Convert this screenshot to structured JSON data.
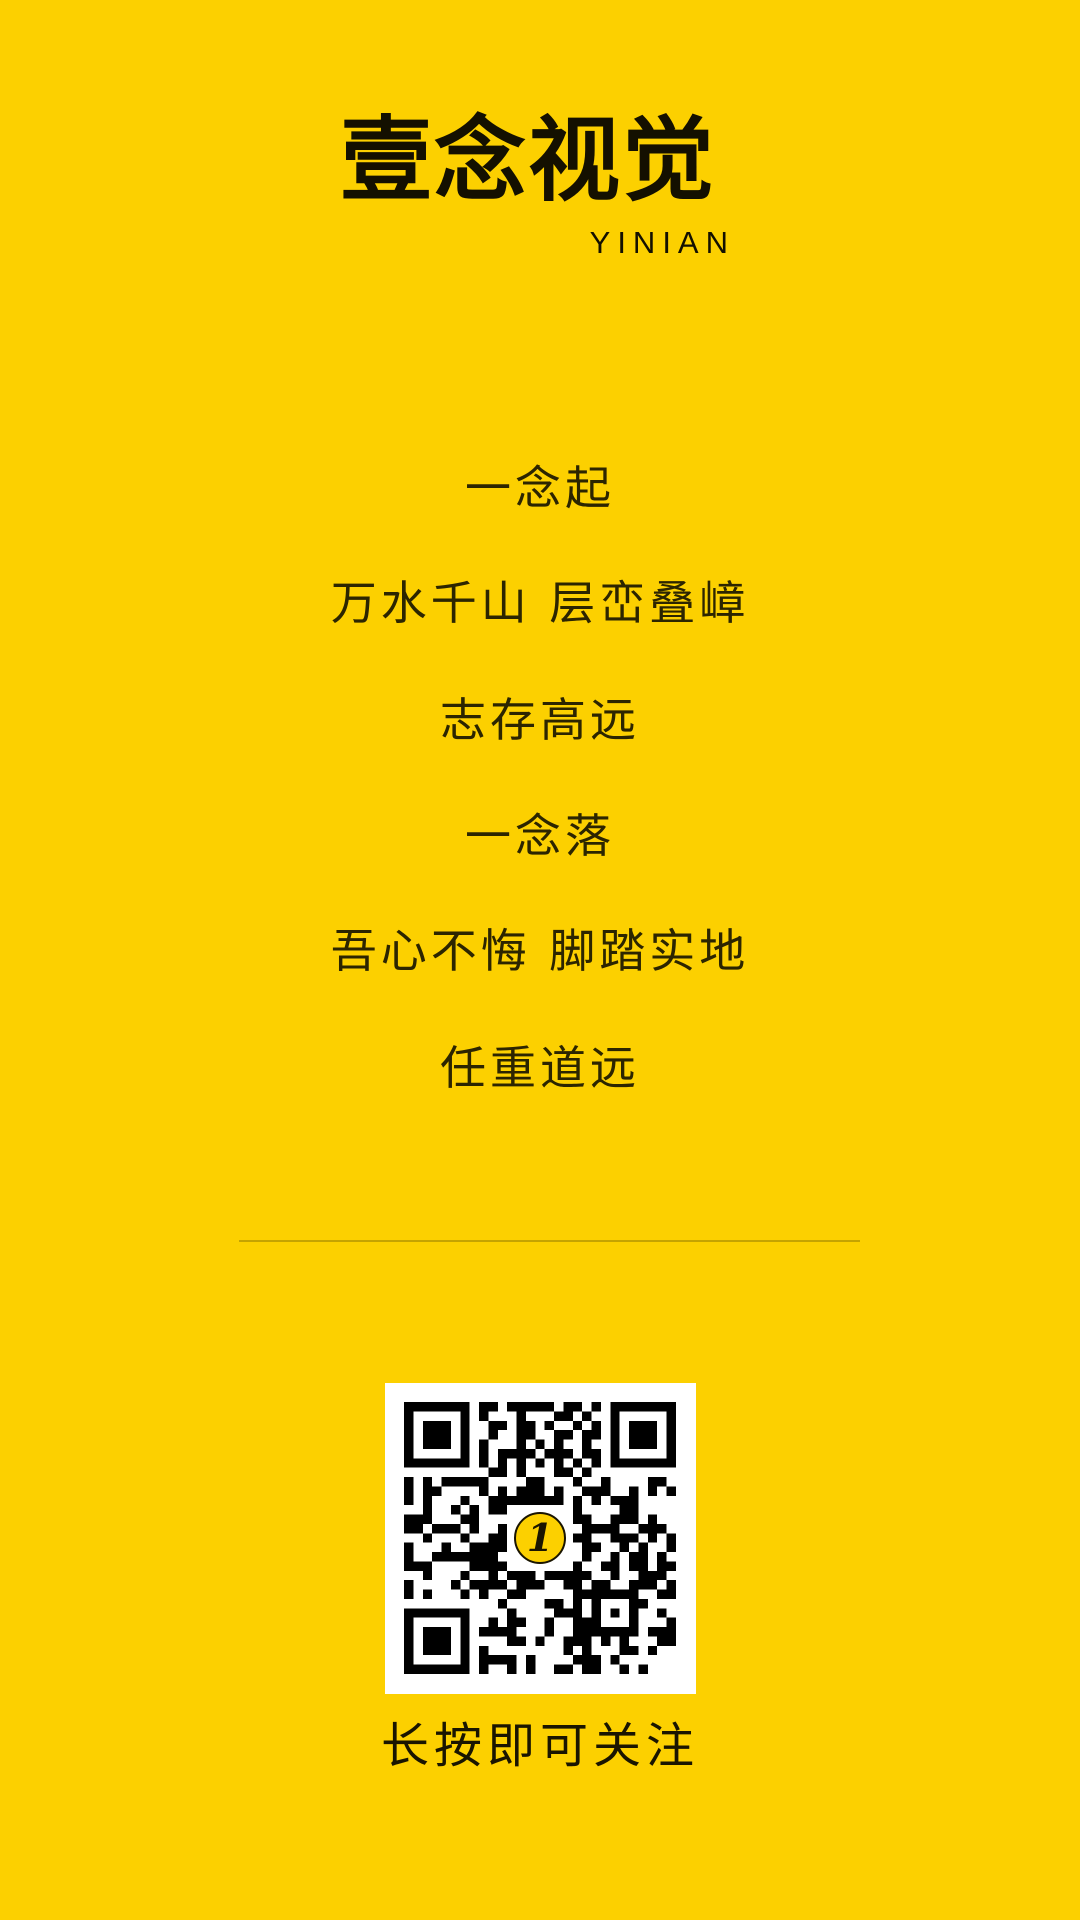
{
  "brand": {
    "title": "壹念视觉",
    "subtitle": "YINIAN"
  },
  "poem": {
    "lines": [
      "一念起",
      "万水千山 层峦叠嶂",
      "志存高远",
      "一念落",
      "吾心不悔 脚踏实地",
      "任重道远"
    ]
  },
  "qr": {
    "logo_text": "1",
    "logo_icon": "yinian-logo-icon"
  },
  "footer": {
    "follow_text": "长按即可关注"
  },
  "colors": {
    "background": "#fcd000",
    "text": "#1a1500",
    "divider": "#c5a300"
  }
}
